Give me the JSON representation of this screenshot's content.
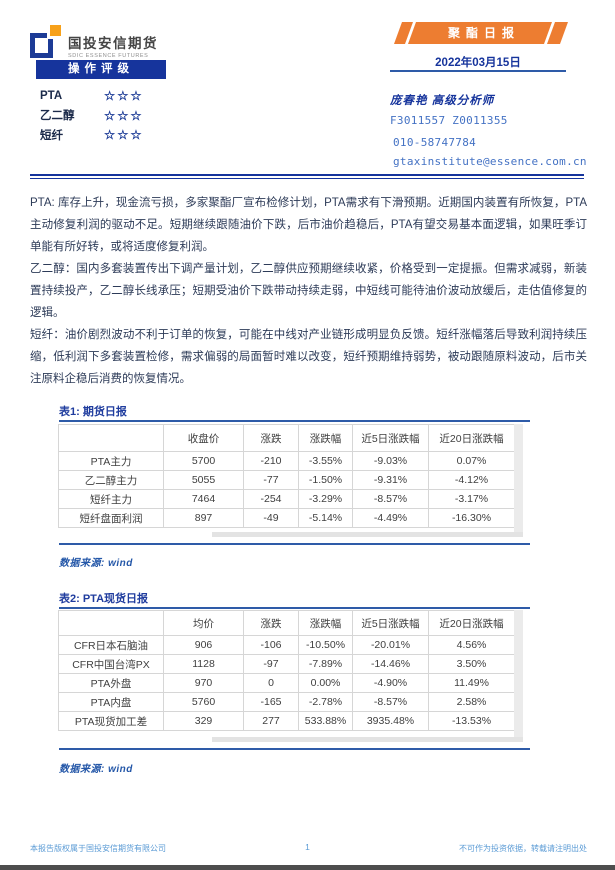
{
  "brand": {
    "name_cn": "国投安信期货",
    "name_en": "SDIC ESSENCE FUTURES"
  },
  "report": {
    "badge": "聚酯日报",
    "date": "2022年03月15日"
  },
  "rating": {
    "title": "操作评级",
    "items": [
      {
        "name": "PTA",
        "stars": "☆☆☆"
      },
      {
        "name": "乙二醇",
        "stars": "☆☆☆"
      },
      {
        "name": "短纤",
        "stars": "☆☆☆"
      }
    ]
  },
  "analyst": {
    "name_line": "庞春艳 高级分析师",
    "cert": "F3011557 Z0011355",
    "phone": "010-58747784",
    "email": "gtaxinstitute@essence.com.cn"
  },
  "summary": {
    "paragraphs": [
      "PTA: 库存上升，现金流亏损，多家聚酯厂宣布检修计划，PTA需求有下滑预期。近期国内装置有所恢复，PTA主动修复利润的驱动不足。短期继续跟随油价下跌，后市油价趋稳后，PTA有望交易基本面逻辑，如果旺季订单能有所好转，或将适度修复利润。",
      "乙二醇：国内多套装置传出下调产量计划，乙二醇供应预期继续收紧，价格受到一定提振。但需求减弱，新装置持续投产，乙二醇长线承压；短期受油价下跌带动持续走弱，中短线可能待油价波动放缓后，走估值修复的逻辑。",
      "短纤：油价剧烈波动不利于订单的恢复，可能在中线对产业链形成明显负反馈。短纤涨幅落后导致利润持续压缩，低利润下多套装置检修，需求偏弱的局面暂时难以改变，短纤预期维持弱势，被动跟随原料波动，后市关注原料企稳后消费的恢复情况。"
    ]
  },
  "tables": {
    "table1": {
      "title": "表1: 期货日报",
      "headers": [
        "",
        "收盘价",
        "涨跌",
        "涨跌幅",
        "近5日涨跌幅",
        "近20日涨跌幅"
      ],
      "rows": [
        [
          "PTA主力",
          "5700",
          "-210",
          "-3.55%",
          "-9.03%",
          "0.07%"
        ],
        [
          "乙二醇主力",
          "5055",
          "-77",
          "-1.50%",
          "-9.31%",
          "-4.12%"
        ],
        [
          "短纤主力",
          "7464",
          "-254",
          "-3.29%",
          "-8.57%",
          "-3.17%"
        ],
        [
          "短纤盘面利润",
          "897",
          "-49",
          "-5.14%",
          "-4.49%",
          "-16.30%"
        ]
      ],
      "source": "数据来源: wind"
    },
    "table2": {
      "title": "表2: PTA现货日报",
      "headers": [
        "",
        "均价",
        "涨跌",
        "涨跌幅",
        "近5日涨跌幅",
        "近20日涨跌幅"
      ],
      "rows": [
        [
          "CFR日本石脑油",
          "906",
          "-106",
          "-10.50%",
          "-20.01%",
          "4.56%"
        ],
        [
          "CFR中国台湾PX",
          "1128",
          "-97",
          "-7.89%",
          "-14.46%",
          "3.50%"
        ],
        [
          "PTA外盘",
          "970",
          "0",
          "0.00%",
          "-4.90%",
          "11.49%"
        ],
        [
          "PTA内盘",
          "5760",
          "-165",
          "-2.78%",
          "-8.57%",
          "2.58%"
        ],
        [
          "PTA现货加工差",
          "329",
          "277",
          "533.88%",
          "3935.48%",
          "-13.53%"
        ]
      ],
      "source": "数据来源: wind"
    }
  },
  "footer": {
    "left": "本报告版权属于国投安信期货有限公司",
    "page": "1",
    "right": "不可作为投资依据，转载请注明出处"
  },
  "colors": {
    "primary_blue": "#16349c",
    "accent_orange": "#ed7d31",
    "contact_blue": "#4472c4",
    "line_blue": "#2e5ba8",
    "footer_blue": "#5b9bd5"
  }
}
